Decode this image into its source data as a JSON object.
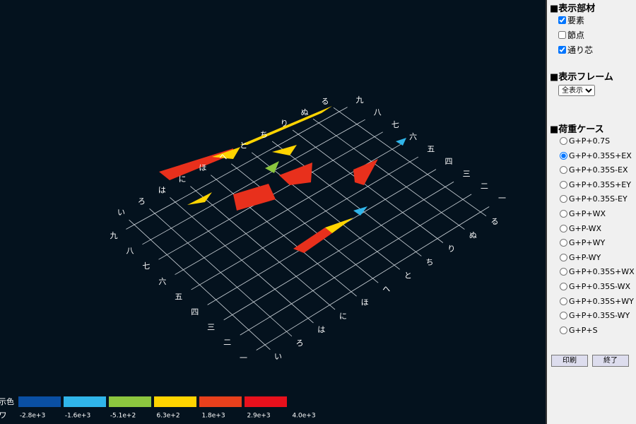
{
  "panel": {
    "members_title": "■表示部材",
    "members": [
      {
        "label": "要素",
        "checked": true
      },
      {
        "label": "節点",
        "checked": false
      },
      {
        "label": "通り芯",
        "checked": true
      }
    ],
    "frame_title": "■表示フレーム",
    "frame_select": "全表示",
    "load_title": "■荷重ケース",
    "load_cases": [
      "G+P+0.7S",
      "G+P+0.35S+EX",
      "G+P+0.35S-EX",
      "G+P+0.35S+EY",
      "G+P+0.35S-EY",
      "G+P+WX",
      "G+P-WX",
      "G+P+WY",
      "G+P-WY",
      "G+P+0.35S+WX",
      "G+P+0.35S-WX",
      "G+P+0.35S+WY",
      "G+P+0.35S-WY",
      "G+P+S"
    ],
    "selected_load_case": 1,
    "buttons": [
      "印刷",
      "終了"
    ]
  },
  "view": {
    "x_labels": [
      "い",
      "ろ",
      "は",
      "に",
      "ほ",
      "へ",
      "と",
      "ち",
      "り",
      "ぬ",
      "る"
    ],
    "y_labels": [
      "一",
      "二",
      "三",
      "四",
      "五",
      "六",
      "七",
      "八",
      "九"
    ]
  },
  "legend": {
    "title": "示色",
    "row_label": "ワ",
    "colors": [
      "#0a4fa3",
      "#30b5ea",
      "#8cc63f",
      "#ffd400",
      "#e8401c",
      "#e8101c"
    ],
    "values": [
      "-2.8e+3",
      "-1.6e+3",
      "-5.1e+2",
      "6.3e+2",
      "1.8e+3",
      "2.9e+3",
      "4.0e+3"
    ]
  }
}
